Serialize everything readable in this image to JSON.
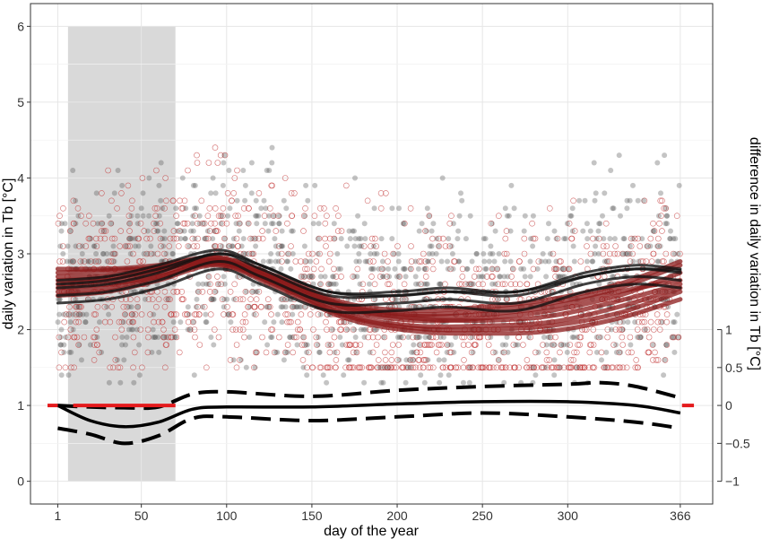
{
  "chart_data": {
    "type": "scatter",
    "xlabel": "day of the year",
    "ylabel": "daily variation in Tb [°C]",
    "ylabel_right": "difference in daily variation in Tb [°C]",
    "xlim": [
      -15,
      385
    ],
    "ylim": [
      -0.3,
      6.3
    ],
    "x_ticks": [
      1,
      50,
      100,
      150,
      200,
      250,
      300,
      366
    ],
    "y_ticks": [
      0,
      1,
      2,
      3,
      4,
      5,
      6
    ],
    "y2_ticks": [
      {
        "label": "−1",
        "y": 0
      },
      {
        "label": "−0.5",
        "y": 0.5
      },
      {
        "label": "0",
        "y": 1
      },
      {
        "label": "0.5",
        "y": 1.5
      },
      {
        "label": "1",
        "y": 2
      }
    ],
    "grid": true,
    "shaded_period": {
      "x": [
        7,
        70
      ],
      "color": "#d9d9d9"
    },
    "colors": {
      "grey_points": "#555555",
      "red_points": "#c43c3c",
      "red_curves": "#8b1a1a",
      "black_curves": "#111111",
      "zero_marker": "#e41a1c"
    },
    "grey_curves": [
      [
        [
          1,
          2.55
        ],
        [
          30,
          2.6
        ],
        [
          60,
          2.75
        ],
        [
          95,
          3.0
        ],
        [
          120,
          2.8
        ],
        [
          160,
          2.45
        ],
        [
          200,
          2.45
        ],
        [
          230,
          2.5
        ],
        [
          270,
          2.45
        ],
        [
          310,
          2.7
        ],
        [
          340,
          2.8
        ],
        [
          366,
          2.75
        ]
      ],
      [
        [
          1,
          2.65
        ],
        [
          30,
          2.7
        ],
        [
          60,
          2.85
        ],
        [
          95,
          3.05
        ],
        [
          120,
          2.85
        ],
        [
          160,
          2.5
        ],
        [
          200,
          2.5
        ],
        [
          230,
          2.55
        ],
        [
          270,
          2.5
        ],
        [
          310,
          2.75
        ],
        [
          340,
          2.85
        ],
        [
          366,
          2.8
        ]
      ],
      [
        [
          1,
          2.45
        ],
        [
          30,
          2.5
        ],
        [
          60,
          2.65
        ],
        [
          95,
          2.9
        ],
        [
          120,
          2.7
        ],
        [
          160,
          2.35
        ],
        [
          200,
          2.35
        ],
        [
          230,
          2.4
        ],
        [
          270,
          2.35
        ],
        [
          310,
          2.6
        ],
        [
          340,
          2.7
        ],
        [
          366,
          2.65
        ]
      ],
      [
        [
          1,
          2.35
        ],
        [
          30,
          2.4
        ],
        [
          60,
          2.55
        ],
        [
          95,
          2.8
        ],
        [
          120,
          2.6
        ],
        [
          160,
          2.25
        ],
        [
          200,
          2.25
        ],
        [
          230,
          2.3
        ],
        [
          270,
          2.25
        ],
        [
          310,
          2.5
        ],
        [
          340,
          2.6
        ],
        [
          366,
          2.55
        ]
      ],
      [
        [
          1,
          2.6
        ],
        [
          30,
          2.65
        ],
        [
          60,
          2.8
        ],
        [
          95,
          3.0
        ],
        [
          120,
          2.85
        ],
        [
          160,
          2.5
        ],
        [
          200,
          2.45
        ],
        [
          230,
          2.5
        ],
        [
          270,
          2.5
        ],
        [
          310,
          2.7
        ],
        [
          340,
          2.8
        ],
        [
          366,
          2.78
        ]
      ]
    ],
    "red_curves": [
      [
        [
          1,
          2.8
        ],
        [
          30,
          2.8
        ],
        [
          60,
          2.85
        ],
        [
          95,
          2.95
        ],
        [
          130,
          2.7
        ],
        [
          170,
          2.35
        ],
        [
          210,
          2.25
        ],
        [
          250,
          2.3
        ],
        [
          290,
          2.4
        ],
        [
          330,
          2.6
        ],
        [
          366,
          2.9
        ]
      ],
      [
        [
          1,
          2.7
        ],
        [
          30,
          2.72
        ],
        [
          60,
          2.8
        ],
        [
          95,
          2.9
        ],
        [
          130,
          2.62
        ],
        [
          170,
          2.25
        ],
        [
          210,
          2.12
        ],
        [
          250,
          2.15
        ],
        [
          290,
          2.25
        ],
        [
          330,
          2.45
        ],
        [
          366,
          2.75
        ]
      ],
      [
        [
          1,
          2.55
        ],
        [
          30,
          2.6
        ],
        [
          60,
          2.7
        ],
        [
          95,
          2.88
        ],
        [
          130,
          2.6
        ],
        [
          170,
          2.2
        ],
        [
          210,
          2.05
        ],
        [
          250,
          2.05
        ],
        [
          290,
          2.1
        ],
        [
          330,
          2.3
        ],
        [
          366,
          2.55
        ]
      ],
      [
        [
          1,
          2.45
        ],
        [
          30,
          2.5
        ],
        [
          60,
          2.65
        ],
        [
          95,
          2.85
        ],
        [
          130,
          2.55
        ],
        [
          170,
          2.15
        ],
        [
          210,
          1.98
        ],
        [
          250,
          1.95
        ],
        [
          290,
          1.98
        ],
        [
          330,
          2.15
        ],
        [
          366,
          2.4
        ]
      ],
      [
        [
          1,
          2.65
        ],
        [
          30,
          2.68
        ],
        [
          60,
          2.78
        ],
        [
          95,
          2.92
        ],
        [
          130,
          2.66
        ],
        [
          170,
          2.3
        ],
        [
          210,
          2.18
        ],
        [
          250,
          2.2
        ],
        [
          290,
          2.3
        ],
        [
          330,
          2.5
        ],
        [
          366,
          2.65
        ]
      ],
      [
        [
          1,
          2.75
        ],
        [
          30,
          2.78
        ],
        [
          60,
          2.82
        ],
        [
          95,
          2.95
        ],
        [
          130,
          2.68
        ],
        [
          170,
          2.32
        ],
        [
          210,
          2.2
        ],
        [
          250,
          2.25
        ],
        [
          290,
          2.35
        ],
        [
          330,
          2.55
        ],
        [
          366,
          2.85
        ]
      ],
      [
        [
          1,
          2.5
        ],
        [
          30,
          2.55
        ],
        [
          60,
          2.7
        ],
        [
          95,
          2.86
        ],
        [
          130,
          2.58
        ],
        [
          170,
          2.18
        ],
        [
          210,
          2.02
        ],
        [
          250,
          2.0
        ],
        [
          290,
          2.05
        ],
        [
          330,
          2.22
        ],
        [
          366,
          2.5
        ]
      ],
      [
        [
          1,
          2.6
        ],
        [
          30,
          2.65
        ],
        [
          60,
          2.75
        ],
        [
          95,
          2.9
        ],
        [
          130,
          2.64
        ],
        [
          170,
          2.28
        ],
        [
          210,
          2.15
        ],
        [
          250,
          2.12
        ],
        [
          290,
          2.18
        ],
        [
          330,
          2.38
        ],
        [
          366,
          2.6
        ]
      ]
    ],
    "difference_mean": [
      [
        1,
        1.0
      ],
      [
        20,
        0.8
      ],
      [
        40,
        0.72
      ],
      [
        60,
        0.78
      ],
      [
        80,
        0.95
      ],
      [
        100,
        0.98
      ],
      [
        150,
        0.98
      ],
      [
        200,
        1.02
      ],
      [
        250,
        1.05
      ],
      [
        300,
        1.05
      ],
      [
        340,
        1.0
      ],
      [
        366,
        0.9
      ]
    ],
    "difference_upper": [
      [
        1,
        1.0
      ],
      [
        20,
        0.98
      ],
      [
        40,
        0.97
      ],
      [
        60,
        0.98
      ],
      [
        80,
        1.15
      ],
      [
        100,
        1.18
      ],
      [
        150,
        1.12
      ],
      [
        200,
        1.2
      ],
      [
        250,
        1.25
      ],
      [
        300,
        1.28
      ],
      [
        320,
        1.3
      ],
      [
        340,
        1.25
      ],
      [
        366,
        1.1
      ]
    ],
    "difference_lower": [
      [
        1,
        0.7
      ],
      [
        20,
        0.62
      ],
      [
        40,
        0.5
      ],
      [
        60,
        0.6
      ],
      [
        80,
        0.83
      ],
      [
        100,
        0.85
      ],
      [
        150,
        0.8
      ],
      [
        200,
        0.85
      ],
      [
        250,
        0.9
      ],
      [
        300,
        0.85
      ],
      [
        340,
        0.78
      ],
      [
        366,
        0.7
      ]
    ],
    "zero_markers": [
      [
        -5,
        1
      ],
      [
        40,
        1
      ],
      [
        75,
        1
      ],
      [
        370,
        1
      ]
    ]
  }
}
